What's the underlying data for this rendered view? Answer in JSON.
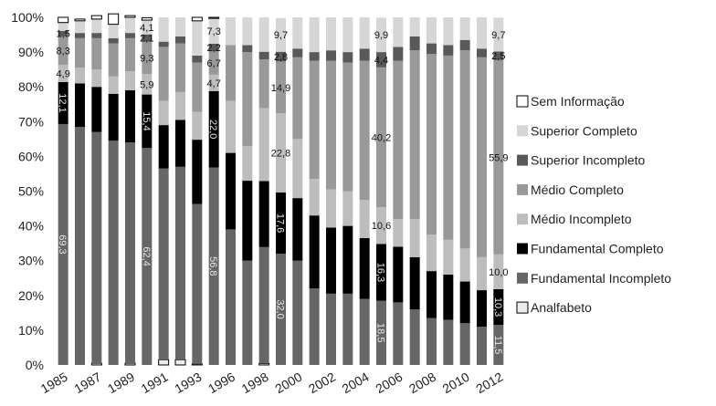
{
  "chart_data": {
    "type": "bar",
    "stacked": true,
    "normalized": true,
    "x": [
      "1985",
      "1986",
      "1987",
      "1988",
      "1989",
      "1990",
      "1991",
      "1992",
      "1993",
      "1995",
      "1996",
      "1997",
      "1998",
      "1999",
      "2000",
      "2001",
      "2002",
      "2003",
      "2004",
      "2005",
      "2006",
      "2007",
      "2008",
      "2009",
      "2010",
      "2011",
      "2012"
    ],
    "x_tick_labels": [
      "1985",
      "1987",
      "1989",
      "1991",
      "1993",
      "1996",
      "1998",
      "2000",
      "2002",
      "2004",
      "2006",
      "2008",
      "2010",
      "2012"
    ],
    "y_tick_labels": [
      "0%",
      "10%",
      "20%",
      "30%",
      "40%",
      "50%",
      "60%",
      "70%",
      "80%",
      "90%",
      "100%"
    ],
    "ylim": [
      0,
      100
    ],
    "legend_position": "right",
    "series": [
      {
        "name": "Analfabeto",
        "color": "#ececec",
        "values": [
          0,
          0,
          0.5,
          0,
          0.5,
          0,
          1.5,
          1.5,
          0.3,
          0,
          0,
          0,
          0.4,
          0,
          0,
          0,
          0,
          0,
          0,
          0,
          0,
          0,
          0,
          0,
          0,
          0,
          0
        ]
      },
      {
        "name": "Fundamental Incompleto",
        "color": "#666666",
        "values": [
          69.3,
          68.5,
          66.5,
          64.5,
          63.5,
          62.4,
          55,
          55.5,
          46,
          56.8,
          39,
          30,
          33.5,
          32,
          30,
          22,
          20.5,
          20.5,
          19,
          18.5,
          18,
          16,
          13.5,
          13,
          12,
          11,
          11.5
        ]
      },
      {
        "name": "Fundamental Completo",
        "color": "#000000",
        "values": [
          12.1,
          12.5,
          13,
          13.5,
          15,
          15.4,
          12.5,
          13.5,
          18.5,
          22,
          22,
          23,
          19,
          17.6,
          18,
          21,
          19,
          19.5,
          17.5,
          16.3,
          16,
          15,
          13.5,
          13,
          12,
          10.5,
          10.3
        ]
      },
      {
        "name": "Médio Incompleto",
        "color": "#bdbdbd",
        "values": [
          4.9,
          4.5,
          5,
          5,
          5.5,
          5.9,
          7,
          8,
          8,
          4.7,
          15,
          10,
          21,
          22.8,
          17,
          10.5,
          11,
          10,
          11,
          10.6,
          8,
          11,
          10.5,
          10,
          9.5,
          9.5,
          10
        ]
      },
      {
        "name": "Médio Completo",
        "color": "#999999",
        "values": [
          8.3,
          8.5,
          9,
          9.5,
          9.5,
          9.3,
          15.5,
          14,
          14.2,
          6.7,
          16,
          27,
          14,
          14.9,
          23.5,
          34,
          37,
          37,
          40,
          40.2,
          45.5,
          48.5,
          52,
          53,
          57,
          57.5,
          55.9
        ]
      },
      {
        "name": "Superior Incompleto",
        "color": "#595959",
        "values": [
          1.5,
          1.5,
          1.5,
          1.5,
          1.5,
          2.1,
          1.5,
          2,
          2,
          2.2,
          0,
          2,
          2.2,
          2.8,
          2.5,
          2.5,
          3,
          3,
          3.5,
          4.4,
          4,
          4,
          3,
          3,
          3,
          2.5,
          2.5
        ]
      },
      {
        "name": "Superior Completo",
        "color": "#d6d6d6",
        "values": [
          2.4,
          3.5,
          4,
          4,
          4.5,
          4.1,
          7,
          5.5,
          10,
          7.3,
          8,
          8,
          9.9,
          9.7,
          9,
          10,
          9.5,
          10,
          9,
          9.9,
          8.5,
          5.5,
          7.5,
          8,
          6.5,
          9,
          9.7
        ]
      },
      {
        "name": "Sem Informação",
        "color": "#ffffff",
        "values": [
          1.5,
          0.5,
          1,
          3,
          0.5,
          0.7,
          0,
          0,
          1,
          0.3,
          0,
          0,
          0,
          0,
          0,
          0,
          0,
          0,
          0,
          0,
          0,
          0,
          0,
          0,
          0,
          0,
          0
        ]
      }
    ],
    "data_labels": [
      {
        "series": "Fundamental Incompleto",
        "x": "1985",
        "text": "69,3"
      },
      {
        "series": "Fundamental Completo",
        "x": "1985",
        "text": "12,1"
      },
      {
        "series": "Médio Incompleto",
        "x": "1985",
        "text": "4,9"
      },
      {
        "series": "Médio Completo",
        "x": "1985",
        "text": "8,3"
      },
      {
        "series": "Superior Incompleto",
        "x": "1985",
        "text": "1,5"
      },
      {
        "series": "Fundamental Incompleto",
        "x": "1990",
        "text": "62,4"
      },
      {
        "series": "Fundamental Completo",
        "x": "1990",
        "text": "15,4"
      },
      {
        "series": "Médio Incompleto",
        "x": "1990",
        "text": "5,9"
      },
      {
        "series": "Médio Completo",
        "x": "1990",
        "text": "9,3"
      },
      {
        "series": "Superior Incompleto",
        "x": "1990",
        "text": "2,1"
      },
      {
        "series": "Superior Completo",
        "x": "1990",
        "text": "4,1"
      },
      {
        "series": "Fundamental Incompleto",
        "x": "1995",
        "text": "56,8"
      },
      {
        "series": "Fundamental Completo",
        "x": "1995",
        "text": "22,0"
      },
      {
        "series": "Médio Incompleto",
        "x": "1995",
        "text": "4,7"
      },
      {
        "series": "Médio Completo",
        "x": "1995",
        "text": "6,7"
      },
      {
        "series": "Superior Incompleto",
        "x": "1995",
        "text": "2,2"
      },
      {
        "series": "Superior Completo",
        "x": "1995",
        "text": "7,3"
      },
      {
        "series": "Fundamental Incompleto",
        "x": "1999",
        "text": "32,0"
      },
      {
        "series": "Fundamental Completo",
        "x": "1999",
        "text": "17,6"
      },
      {
        "series": "Médio Incompleto",
        "x": "1999",
        "text": "22,8"
      },
      {
        "series": "Médio Completo",
        "x": "1999",
        "text": "14,9"
      },
      {
        "series": "Superior Incompleto",
        "x": "1999",
        "text": "2,8"
      },
      {
        "series": "Superior Completo",
        "x": "1999",
        "text": "9,7"
      },
      {
        "series": "Fundamental Incompleto",
        "x": "2005",
        "text": "18,5"
      },
      {
        "series": "Fundamental Completo",
        "x": "2005",
        "text": "16,3"
      },
      {
        "series": "Médio Incompleto",
        "x": "2005",
        "text": "10,6"
      },
      {
        "series": "Médio Completo",
        "x": "2005",
        "text": "40,2"
      },
      {
        "series": "Superior Incompleto",
        "x": "2005",
        "text": "4,4"
      },
      {
        "series": "Superior Completo",
        "x": "2005",
        "text": "9,9"
      },
      {
        "series": "Fundamental Incompleto",
        "x": "2012",
        "text": "11,5"
      },
      {
        "series": "Fundamental Completo",
        "x": "2012",
        "text": "10,3"
      },
      {
        "series": "Médio Incompleto",
        "x": "2012",
        "text": "10,0"
      },
      {
        "series": "Médio Completo",
        "x": "2012",
        "text": "55,9"
      },
      {
        "series": "Superior Incompleto",
        "x": "2012",
        "text": "2,5"
      },
      {
        "series": "Superior Completo",
        "x": "2012",
        "text": "9,7"
      }
    ],
    "legend_order": [
      "Sem Informação",
      "Superior Completo",
      "Superior Incompleto",
      "Médio Completo",
      "Médio Incompleto",
      "Fundamental Completo",
      "Fundamental Incompleto",
      "Analfabeto"
    ]
  }
}
